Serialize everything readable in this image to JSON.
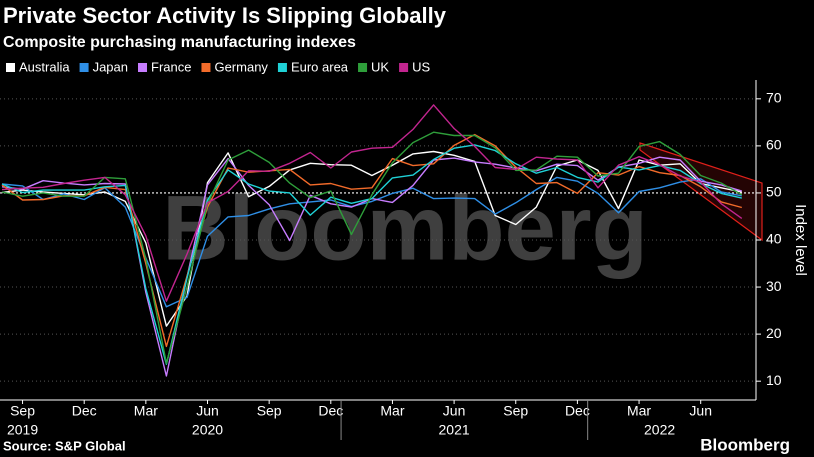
{
  "chart_data": {
    "type": "line",
    "title": "Private Sector Activity Is Slipping Globally",
    "subtitle": "Composite purchasing manufacturing indexes",
    "y_axis_label": "Index level",
    "source": "Source: S&P Global",
    "watermark": "Bloomberg",
    "brand": "Bloomberg",
    "categories": [
      null,
      "Sep",
      null,
      null,
      "Dec",
      null,
      null,
      "Mar",
      null,
      null,
      "Jun",
      null,
      null,
      "Sep",
      null,
      null,
      "Dec",
      null,
      null,
      "Mar",
      null,
      null,
      "Jun",
      null,
      null,
      "Sep",
      null,
      null,
      "Dec",
      null,
      null,
      "Mar",
      null,
      null,
      "Jun",
      null,
      null
    ],
    "year_labels": [
      null,
      "2019",
      null,
      null,
      null,
      null,
      null,
      null,
      null,
      null,
      "2020",
      null,
      null,
      null,
      null,
      null,
      null,
      null,
      null,
      null,
      null,
      null,
      "2021",
      null,
      null,
      null,
      null,
      null,
      null,
      null,
      null,
      null,
      "2022",
      null,
      null,
      null,
      null
    ],
    "series": [
      {
        "name": "Australia",
        "color": "#ffffff",
        "values": [
          50.1,
          50.6,
          50.2,
          49.9,
          49.6,
          50.2,
          48.2,
          39.4,
          21.7,
          28.1,
          52.2,
          58.5,
          49.2,
          51.4,
          54.9,
          56.3,
          56.0,
          55.9,
          53.7,
          55.9,
          58.3,
          58.8,
          58.0,
          56.7,
          45.2,
          43.3,
          47.0,
          55.7,
          57.0,
          54.8,
          46.7,
          57.0,
          55.9,
          56.2,
          52.0,
          51.1,
          50.2
        ]
      },
      {
        "name": "Japan",
        "color": "#2f8fe6",
        "values": [
          51.9,
          51.5,
          48.6,
          49.8,
          48.6,
          51.1,
          47.0,
          36.2,
          25.8,
          27.8,
          40.8,
          44.9,
          45.2,
          46.6,
          47.7,
          48.1,
          48.5,
          47.1,
          48.2,
          49.9,
          51.0,
          48.8,
          48.9,
          48.8,
          45.5,
          47.9,
          50.7,
          53.3,
          52.5,
          49.9,
          45.8,
          50.3,
          51.1,
          52.3,
          53.0,
          50.2,
          49.4
        ]
      },
      {
        "name": "France",
        "color": "#c77dff",
        "values": [
          51.3,
          50.8,
          52.6,
          52.1,
          51.7,
          52.0,
          51.9,
          28.9,
          11.1,
          32.1,
          51.7,
          57.3,
          51.6,
          47.5,
          39.9,
          49.5,
          47.7,
          47.0,
          48.8,
          48.0,
          51.6,
          57.0,
          57.4,
          56.6,
          56.1,
          55.3,
          54.7,
          56.1,
          55.8,
          52.7,
          55.5,
          56.3,
          57.6,
          57.0,
          52.5,
          51.7,
          50.4
        ]
      },
      {
        "name": "Germany",
        "color": "#f26b2a",
        "values": [
          51.7,
          48.5,
          48.6,
          49.4,
          49.4,
          51.2,
          50.7,
          35.0,
          17.4,
          32.3,
          47.0,
          55.3,
          54.4,
          54.7,
          55.0,
          51.7,
          52.0,
          50.8,
          51.1,
          57.3,
          55.8,
          56.2,
          60.1,
          62.4,
          60.0,
          55.5,
          52.0,
          52.2,
          49.9,
          54.3,
          53.8,
          55.6,
          54.3,
          53.7,
          51.3,
          48.1,
          46.9
        ]
      },
      {
        "name": "Euro area",
        "color": "#1fd1d6",
        "values": [
          51.9,
          50.1,
          50.6,
          50.6,
          50.6,
          51.3,
          51.6,
          29.7,
          13.6,
          31.9,
          48.5,
          54.9,
          51.9,
          50.4,
          50.0,
          45.3,
          49.1,
          47.8,
          48.8,
          53.2,
          53.8,
          57.1,
          59.5,
          60.2,
          59.0,
          56.2,
          54.2,
          55.4,
          53.3,
          52.3,
          55.5,
          54.9,
          55.8,
          54.8,
          52.0,
          49.9,
          48.9
        ]
      },
      {
        "name": "UK",
        "color": "#2e9e3a",
        "values": [
          50.2,
          49.3,
          50.0,
          49.3,
          49.3,
          53.3,
          53.0,
          36.0,
          13.8,
          30.0,
          47.7,
          57.0,
          59.1,
          56.5,
          52.1,
          49.0,
          50.4,
          41.2,
          49.6,
          56.4,
          60.7,
          62.9,
          62.2,
          62.2,
          59.6,
          54.8,
          54.9,
          57.8,
          57.6,
          53.6,
          54.2,
          59.9,
          60.9,
          58.2,
          53.7,
          52.1,
          49.6
        ]
      },
      {
        "name": "US",
        "color": "#c2258f",
        "values": [
          50.7,
          51.0,
          51.2,
          52.0,
          52.7,
          53.3,
          49.6,
          40.9,
          27.0,
          37.0,
          47.9,
          50.3,
          54.7,
          54.6,
          56.3,
          58.6,
          55.3,
          58.7,
          59.5,
          59.7,
          63.5,
          68.7,
          63.7,
          59.9,
          55.4,
          55.0,
          57.6,
          57.2,
          57.0,
          51.1,
          55.9,
          57.7,
          56.0,
          53.6,
          52.3,
          47.7,
          44.6
        ]
      }
    ],
    "ylim": [
      6,
      74
    ],
    "yticks": [
      10,
      20,
      30,
      40,
      50,
      60,
      70
    ],
    "reference_line": 50,
    "grid": true,
    "legend": "top-left"
  }
}
